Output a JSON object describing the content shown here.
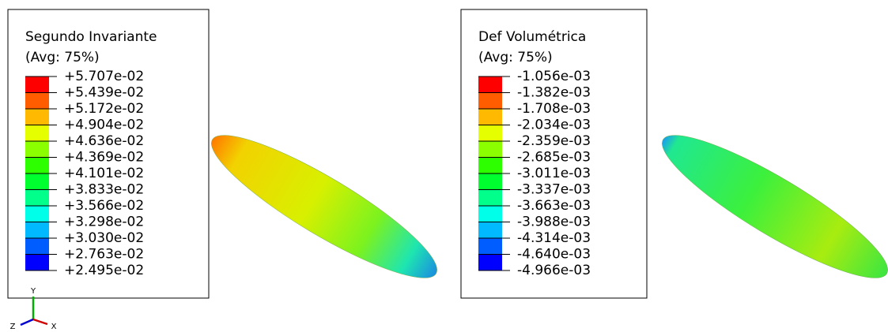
{
  "panels": [
    {
      "legend": {
        "title": "Segundo Invariante",
        "subtitle": "(Avg: 75%)",
        "levels": [
          "+5.707e-02",
          "+5.439e-02",
          "+5.172e-02",
          "+4.904e-02",
          "+4.636e-02",
          "+4.369e-02",
          "+4.101e-02",
          "+3.833e-02",
          "+3.566e-02",
          "+3.298e-02",
          "+3.030e-02",
          "+2.763e-02",
          "+2.495e-02"
        ]
      }
    },
    {
      "legend": {
        "title": "Def Volumétrica",
        "subtitle": "(Avg: 75%)",
        "levels": [
          "-1.056e-03",
          "-1.382e-03",
          "-1.708e-03",
          "-2.034e-03",
          "-2.359e-03",
          "-2.685e-03",
          "-3.011e-03",
          "-3.337e-03",
          "-3.663e-03",
          "-3.988e-03",
          "-4.314e-03",
          "-4.640e-03",
          "-4.966e-03"
        ]
      }
    }
  ],
  "triad": {
    "y": "Y",
    "z": "Z",
    "x": "X"
  }
}
